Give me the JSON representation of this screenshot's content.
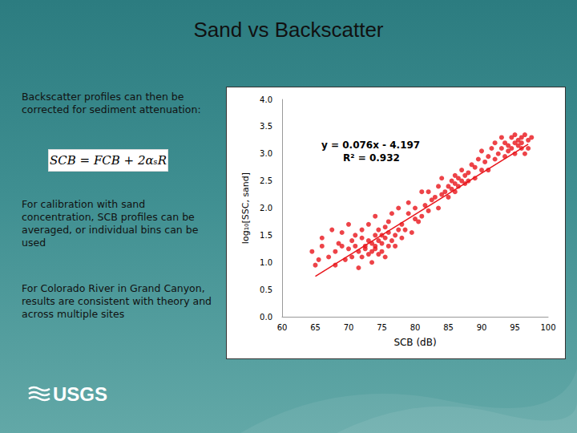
{
  "slide": {
    "title": "Sand vs Backscatter",
    "paragraphs": [
      "Backscatter profiles can then be corrected for sediment attenuation:",
      "For calibration with sand concentration, SCB profiles can be averaged, or individual bins can be used",
      "For Colorado River in Grand Canyon, results are consistent with theory and across multiple sites"
    ],
    "formula": "SCB = FCB + 2αₛR",
    "logo": "USGS"
  },
  "chart_data": {
    "type": "scatter",
    "x_label": "SCB (dB)",
    "y_label": "log₁₀[SSC, sand]",
    "annotations": [
      "y = 0.076x - 4.197",
      "R² = 0.932"
    ],
    "xlim": [
      60,
      100
    ],
    "xticks": [
      60,
      65,
      70,
      75,
      80,
      85,
      90,
      95,
      100
    ],
    "ylim": [
      0,
      4
    ],
    "yticks": [
      {
        "value": 0,
        "label": "0.0"
      },
      {
        "value": 0.5,
        "label": "0.5"
      },
      {
        "value": 1,
        "label": "1.0"
      },
      {
        "value": 1.5,
        "label": "1.5"
      },
      {
        "value": 2,
        "label": "2.0"
      },
      {
        "value": 2.5,
        "label": "2.5"
      },
      {
        "value": 3,
        "label": "3.0"
      },
      {
        "value": 3.5,
        "label": "3.5"
      },
      {
        "value": 4,
        "label": "4.0"
      }
    ],
    "grid": false,
    "series": [
      {
        "type": "scatter",
        "color": "#e8141a",
        "marker": "circle",
        "x": [
          64.5,
          65,
          65.5,
          66,
          66,
          67,
          67.5,
          68,
          68,
          68.5,
          69,
          69,
          69.5,
          70,
          70,
          70.5,
          70.5,
          71,
          71,
          71.5,
          71.5,
          72,
          72,
          72,
          72.5,
          72.5,
          73,
          73,
          73,
          73.5,
          73.5,
          73.5,
          74,
          74,
          74,
          74,
          74.5,
          74.5,
          74.5,
          75,
          75,
          75,
          75.5,
          75.5,
          75.5,
          76,
          76,
          76,
          76.5,
          76.5,
          77,
          77,
          77.5,
          77.5,
          78,
          78,
          78.5,
          79,
          79,
          79.5,
          80,
          80,
          80.5,
          81,
          81,
          81.5,
          82,
          82,
          82.5,
          83,
          83.5,
          83.5,
          84,
          84,
          84.5,
          85,
          85,
          85.5,
          85.5,
          86,
          86,
          86,
          86.5,
          86.5,
          87,
          87,
          87.5,
          87.5,
          88,
          88,
          88.5,
          89,
          89,
          89.5,
          90,
          90,
          90.5,
          91,
          91,
          91.5,
          92,
          92,
          92.5,
          93,
          93,
          93.5,
          93.5,
          94,
          94,
          94.5,
          94.5,
          95,
          95,
          95,
          95.5,
          95.5,
          96,
          96,
          96,
          96.5,
          96.5,
          97,
          97,
          97.5
        ],
        "values": [
          1.2,
          0.95,
          1.05,
          1.3,
          1.45,
          1.1,
          1.6,
          1.2,
          0.95,
          1.35,
          1.3,
          1.55,
          1.05,
          1.7,
          1.25,
          1.4,
          1.1,
          1.5,
          1.3,
          1.2,
          0.9,
          1.45,
          1.1,
          1.6,
          1.3,
          1.25,
          1.4,
          1.15,
          1.7,
          1.35,
          1.2,
          1.0,
          1.5,
          1.3,
          1.25,
          1.85,
          1.4,
          1.15,
          1.6,
          1.35,
          1.5,
          1.2,
          1.65,
          1.45,
          1.1,
          1.3,
          1.55,
          1.75,
          1.4,
          1.9,
          1.5,
          1.3,
          1.6,
          2.0,
          1.45,
          1.7,
          1.6,
          1.9,
          2.1,
          1.55,
          1.8,
          2.0,
          1.75,
          2.3,
          1.85,
          2.05,
          2.3,
          1.95,
          2.15,
          2.2,
          2.0,
          2.4,
          2.25,
          2.55,
          2.3,
          2.4,
          2.2,
          2.5,
          2.35,
          2.45,
          2.6,
          2.3,
          2.55,
          2.4,
          2.5,
          2.7,
          2.45,
          2.6,
          2.65,
          2.5,
          2.8,
          2.55,
          2.75,
          2.9,
          2.7,
          3.05,
          2.85,
          2.95,
          2.7,
          3.1,
          2.9,
          3.2,
          3.0,
          3.1,
          3.3,
          2.95,
          3.2,
          3.15,
          3.05,
          3.3,
          3.1,
          3.2,
          3.0,
          3.35,
          3.15,
          3.25,
          3.1,
          3.3,
          3.2,
          3.0,
          3.35,
          3.25,
          3.1,
          3.3
        ]
      },
      {
        "type": "line",
        "color": "#e8141a",
        "line_style": "solid",
        "x": [
          65,
          97
        ],
        "values": [
          0.743,
          3.175
        ]
      }
    ]
  }
}
